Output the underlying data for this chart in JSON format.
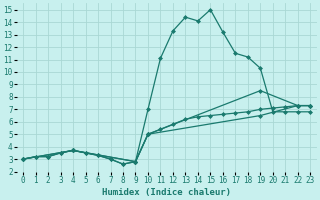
{
  "xlabel": "Humidex (Indice chaleur)",
  "bg_color": "#c8f0ee",
  "grid_color": "#aad8d4",
  "line_color": "#1a7a6e",
  "xlim": [
    -0.5,
    23.5
  ],
  "ylim": [
    2,
    15.5
  ],
  "xticks": [
    0,
    1,
    2,
    3,
    4,
    5,
    6,
    7,
    8,
    9,
    10,
    11,
    12,
    13,
    14,
    15,
    16,
    17,
    18,
    19,
    20,
    21,
    22,
    23
  ],
  "yticks": [
    2,
    3,
    4,
    5,
    6,
    7,
    8,
    9,
    10,
    11,
    12,
    13,
    14,
    15
  ],
  "line1_x": [
    0,
    1,
    2,
    3,
    4,
    5,
    6,
    7,
    8,
    9,
    10,
    11,
    12,
    13,
    14,
    15,
    16,
    17,
    18,
    19,
    20,
    21,
    22,
    23
  ],
  "line1_y": [
    3.0,
    3.2,
    3.2,
    3.5,
    3.7,
    3.5,
    3.3,
    3.0,
    2.6,
    2.8,
    7.0,
    11.1,
    13.3,
    14.4,
    14.1,
    15.0,
    13.2,
    11.5,
    11.2,
    10.3,
    6.8,
    6.8,
    6.8,
    6.8
  ],
  "line2_x": [
    0,
    1,
    2,
    3,
    4,
    5,
    6,
    7,
    8,
    9,
    10,
    11,
    12,
    13,
    14,
    15,
    16,
    17,
    18,
    19,
    20,
    21,
    22,
    23
  ],
  "line2_y": [
    3.0,
    3.2,
    3.2,
    3.5,
    3.7,
    3.5,
    3.3,
    3.0,
    2.6,
    2.8,
    5.0,
    5.4,
    5.8,
    6.2,
    6.4,
    6.5,
    6.6,
    6.7,
    6.8,
    7.0,
    7.1,
    7.2,
    7.3,
    7.3
  ],
  "line3_x": [
    0,
    4,
    9,
    10,
    19,
    22,
    23
  ],
  "line3_y": [
    3.0,
    3.7,
    2.8,
    5.0,
    8.5,
    7.3,
    7.3
  ],
  "line4_x": [
    0,
    4,
    9,
    10,
    19,
    22,
    23
  ],
  "line4_y": [
    3.0,
    3.7,
    2.8,
    5.0,
    6.5,
    7.3,
    7.3
  ]
}
